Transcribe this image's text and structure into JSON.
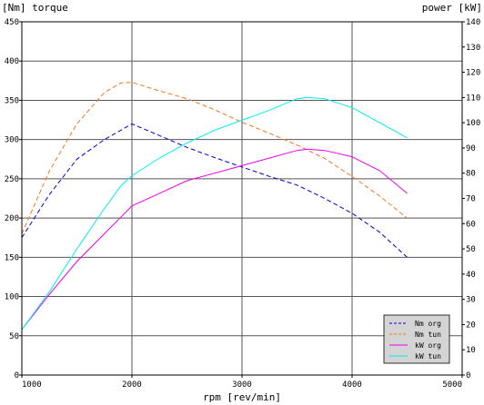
{
  "chart_data": {
    "type": "line",
    "title_left": "[Nm] torque",
    "title_right": "power [kW]",
    "xlabel": "rpm [rev/min]",
    "xlim": [
      1000,
      5000
    ],
    "ylim_left": [
      0,
      450
    ],
    "ylim_right": [
      0,
      140
    ],
    "x_ticks": [
      1000,
      2000,
      3000,
      4000,
      5000
    ],
    "y_left_ticks": [
      0,
      50,
      100,
      150,
      200,
      250,
      300,
      350,
      400,
      450
    ],
    "y_right_ticks": [
      0,
      10,
      20,
      30,
      40,
      50,
      60,
      70,
      80,
      90,
      100,
      110,
      120,
      130,
      140
    ],
    "x_grid": [
      1000,
      2000,
      3000,
      4000
    ],
    "y_left_grid": [
      50,
      100,
      150,
      200,
      250,
      300,
      350,
      400
    ],
    "legend_position": "bottom-right",
    "series": [
      {
        "name": "Nm org",
        "axis": "left",
        "color": "#0000cc",
        "dash": true,
        "x": [
          1000,
          1250,
          1500,
          1750,
          2000,
          2250,
          2500,
          2750,
          3000,
          3250,
          3500,
          3750,
          4000,
          4250,
          4500
        ],
        "y": [
          175,
          230,
          275,
          300,
          320,
          305,
          290,
          277,
          265,
          253,
          242,
          225,
          206,
          182,
          150
        ]
      },
      {
        "name": "Nm tun",
        "axis": "left",
        "color": "#ee7722",
        "dash": true,
        "x": [
          1000,
          1250,
          1500,
          1750,
          1900,
          2000,
          2250,
          2500,
          2750,
          3000,
          3250,
          3500,
          3750,
          4000,
          4250,
          4500
        ],
        "y": [
          180,
          260,
          320,
          360,
          372,
          373,
          362,
          352,
          338,
          322,
          308,
          293,
          276,
          253,
          228,
          200
        ]
      },
      {
        "name": "kW org",
        "axis": "right",
        "color": "#ee00ee",
        "dash": false,
        "x": [
          1000,
          1250,
          1500,
          1750,
          2000,
          2250,
          2500,
          2750,
          3000,
          3250,
          3500,
          3600,
          3750,
          4000,
          4250,
          4500
        ],
        "y": [
          18,
          32,
          45,
          56,
          67,
          72,
          77,
          80,
          83,
          86,
          89,
          89.5,
          89,
          86.5,
          81,
          72
        ]
      },
      {
        "name": "kW tun",
        "axis": "right",
        "color": "#00eeee",
        "dash": false,
        "x": [
          1000,
          1250,
          1500,
          1750,
          1900,
          2000,
          2250,
          2500,
          2750,
          3000,
          3250,
          3500,
          3600,
          3750,
          4000,
          4250,
          4500
        ],
        "y": [
          18,
          33,
          50,
          66,
          75,
          79,
          86,
          92,
          97,
          101,
          105,
          109.5,
          110,
          109.5,
          106,
          100,
          94
        ]
      }
    ]
  }
}
